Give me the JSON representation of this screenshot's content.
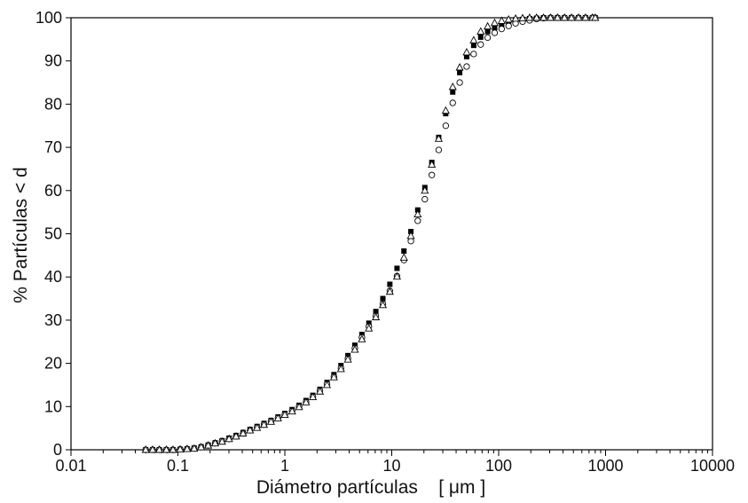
{
  "chart_data": {
    "type": "scatter",
    "xscale": "log",
    "xlabel": "Diámetro partículas    [ μm ]",
    "ylabel": "% Partículas < d",
    "xlim": [
      0.01,
      10000
    ],
    "ylim": [
      0,
      100
    ],
    "grid": false,
    "legend": "none",
    "x_ticks": [
      {
        "value": 0.01,
        "label": "0.01"
      },
      {
        "value": 0.1,
        "label": "0.1"
      },
      {
        "value": 1,
        "label": "1"
      },
      {
        "value": 10,
        "label": "10"
      },
      {
        "value": 100,
        "label": "100"
      },
      {
        "value": 1000,
        "label": "1000"
      },
      {
        "value": 10000,
        "label": "10000"
      }
    ],
    "y_ticks": [
      {
        "value": 0,
        "label": "0"
      },
      {
        "value": 10,
        "label": "10"
      },
      {
        "value": 20,
        "label": "20"
      },
      {
        "value": 30,
        "label": "30"
      },
      {
        "value": 40,
        "label": "40"
      },
      {
        "value": 50,
        "label": "50"
      },
      {
        "value": 60,
        "label": "60"
      },
      {
        "value": 70,
        "label": "70"
      },
      {
        "value": 80,
        "label": "80"
      },
      {
        "value": 90,
        "label": "90"
      },
      {
        "value": 100,
        "label": "100"
      }
    ],
    "x": [
      0.05,
      0.058,
      0.067,
      0.078,
      0.09,
      0.105,
      0.122,
      0.142,
      0.165,
      0.192,
      0.223,
      0.259,
      0.301,
      0.35,
      0.407,
      0.473,
      0.55,
      0.639,
      0.743,
      0.864,
      1.0,
      1.17,
      1.36,
      1.58,
      1.83,
      2.13,
      2.48,
      2.88,
      3.35,
      3.89,
      4.52,
      5.26,
      6.11,
      7.1,
      8.26,
      9.6,
      11.2,
      13.0,
      15.1,
      17.5,
      20.4,
      23.7,
      27.5,
      32.0,
      37.2,
      43.2,
      50.2,
      58.4,
      67.9,
      78.9,
      91.7,
      106.6,
      123.9,
      144.0,
      167.4,
      194.6,
      226.2,
      262.9,
      305.6,
      355.2,
      412.9,
      480.0,
      558.0,
      648.6,
      754.0,
      800.0
    ],
    "series": [
      {
        "marker": "filled-square",
        "values": [
          0,
          0,
          0,
          0,
          0,
          0.1,
          0.2,
          0.4,
          0.7,
          1.1,
          1.6,
          2.1,
          2.7,
          3.3,
          4.0,
          4.7,
          5.4,
          6.1,
          6.8,
          7.6,
          8.4,
          9.3,
          10.3,
          11.4,
          12.6,
          14.0,
          15.6,
          17.4,
          19.5,
          21.8,
          24.2,
          26.7,
          29.3,
          32.0,
          35.0,
          38.3,
          42.0,
          46.0,
          50.5,
          55.5,
          60.7,
          66.5,
          72.3,
          77.8,
          82.8,
          87.3,
          91.0,
          93.6,
          95.5,
          96.8,
          97.7,
          98.4,
          98.9,
          99.3,
          99.6,
          99.8,
          99.9,
          100,
          100,
          100,
          100,
          100,
          100,
          100,
          100,
          100
        ]
      },
      {
        "marker": "open-circle",
        "values": [
          0,
          0,
          0,
          0,
          0,
          0.1,
          0.2,
          0.3,
          0.6,
          1.0,
          1.5,
          2.0,
          2.5,
          3.1,
          3.8,
          4.5,
          5.2,
          5.9,
          6.6,
          7.4,
          8.2,
          9.0,
          10.0,
          11.1,
          12.3,
          13.7,
          15.2,
          16.9,
          18.9,
          21.1,
          23.5,
          26.0,
          28.5,
          31.0,
          33.8,
          36.8,
          40.2,
          43.9,
          48.3,
          53.0,
          58.0,
          63.6,
          69.4,
          75.0,
          80.3,
          85.0,
          88.7,
          91.6,
          93.8,
          95.4,
          96.5,
          97.4,
          98.1,
          98.7,
          99.1,
          99.4,
          99.7,
          99.9,
          100,
          100,
          100,
          100,
          100,
          100,
          100,
          100
        ]
      },
      {
        "marker": "open-triangle",
        "values": [
          0,
          0,
          0,
          0,
          0,
          0.1,
          0.2,
          0.3,
          0.6,
          1.0,
          1.5,
          1.9,
          2.5,
          3.1,
          3.8,
          4.5,
          5.1,
          5.8,
          6.5,
          7.3,
          8.1,
          8.9,
          9.9,
          11.0,
          12.2,
          13.5,
          15.0,
          16.8,
          18.7,
          20.9,
          23.2,
          25.6,
          28.1,
          30.7,
          33.5,
          36.6,
          40.1,
          44.5,
          49.5,
          54.5,
          60.0,
          66.0,
          72.0,
          78.5,
          84.0,
          88.5,
          92.0,
          94.8,
          96.8,
          98.0,
          98.8,
          99.3,
          99.6,
          99.8,
          99.9,
          100,
          100,
          100,
          100,
          100,
          100,
          100,
          100,
          100,
          100,
          100
        ]
      }
    ]
  }
}
